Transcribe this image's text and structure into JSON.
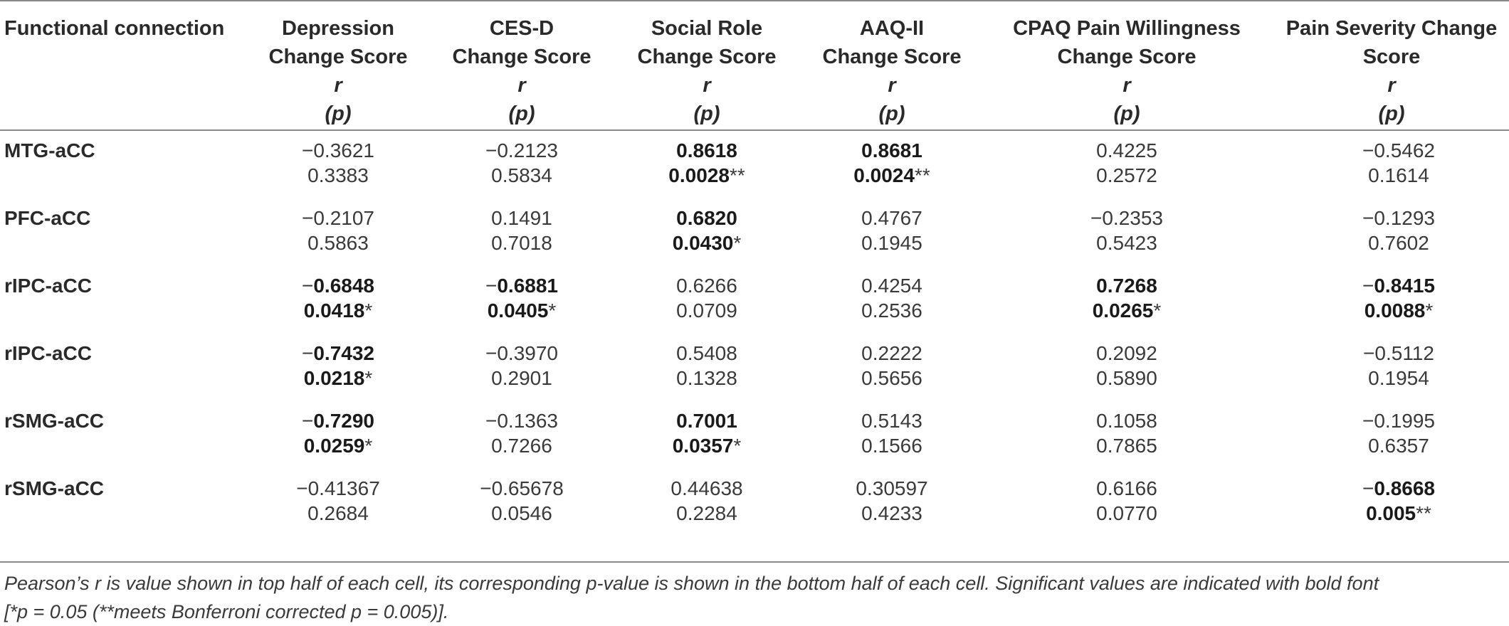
{
  "table": {
    "header": {
      "col0": "Functional connection",
      "cols": [
        {
          "l1": "Depression",
          "l2": "Change Score",
          "r": "r",
          "p": "(p)"
        },
        {
          "l1": "CES-D",
          "l2": "Change Score",
          "r": "r",
          "p": "(p)"
        },
        {
          "l1": "Social Role",
          "l2": "Change Score",
          "r": "r",
          "p": "(p)"
        },
        {
          "l1": "AAQ-II",
          "l2": "Change Score",
          "r": "r",
          "p": "(p)"
        },
        {
          "l1": "CPAQ Pain Willingness",
          "l2": "Change Score",
          "r": "r",
          "p": "(p)"
        },
        {
          "l1": "Pain Severity Change",
          "l2": "Score",
          "r": "r",
          "p": "(p)"
        }
      ]
    },
    "rows": [
      {
        "label": "MTG-aCC",
        "r": [
          {
            "sign": "−",
            "num": "0.3621",
            "bold": false
          },
          {
            "sign": "−",
            "num": "0.2123",
            "bold": false
          },
          {
            "sign": "",
            "num": "0.8618",
            "bold": true
          },
          {
            "sign": "",
            "num": "0.8681",
            "bold": true
          },
          {
            "sign": "",
            "num": "0.4225",
            "bold": false
          },
          {
            "sign": "−",
            "num": "0.5462",
            "bold": false
          }
        ],
        "p": [
          {
            "num": "0.3383",
            "bold": false,
            "star": ""
          },
          {
            "num": "0.5834",
            "bold": false,
            "star": ""
          },
          {
            "num": "0.0028",
            "bold": true,
            "star": "**"
          },
          {
            "num": "0.0024",
            "bold": true,
            "star": "**"
          },
          {
            "num": "0.2572",
            "bold": false,
            "star": ""
          },
          {
            "num": "0.1614",
            "bold": false,
            "star": ""
          }
        ]
      },
      {
        "label": "PFC-aCC",
        "r": [
          {
            "sign": "−",
            "num": "0.2107",
            "bold": false
          },
          {
            "sign": "",
            "num": "0.1491",
            "bold": false
          },
          {
            "sign": "",
            "num": "0.6820",
            "bold": true
          },
          {
            "sign": "",
            "num": "0.4767",
            "bold": false
          },
          {
            "sign": "−",
            "num": "0.2353",
            "bold": false
          },
          {
            "sign": "−",
            "num": "0.1293",
            "bold": false
          }
        ],
        "p": [
          {
            "num": "0.5863",
            "bold": false,
            "star": ""
          },
          {
            "num": "0.7018",
            "bold": false,
            "star": ""
          },
          {
            "num": "0.0430",
            "bold": true,
            "star": "*"
          },
          {
            "num": "0.1945",
            "bold": false,
            "star": ""
          },
          {
            "num": "0.5423",
            "bold": false,
            "star": ""
          },
          {
            "num": "0.7602",
            "bold": false,
            "star": ""
          }
        ]
      },
      {
        "label": "rIPC-aCC",
        "r": [
          {
            "sign": "−",
            "num": "0.6848",
            "bold": true
          },
          {
            "sign": "−",
            "num": "0.6881",
            "bold": true
          },
          {
            "sign": "",
            "num": "0.6266",
            "bold": false
          },
          {
            "sign": "",
            "num": "0.4254",
            "bold": false
          },
          {
            "sign": "",
            "num": "0.7268",
            "bold": true
          },
          {
            "sign": "−",
            "num": "0.8415",
            "bold": true
          }
        ],
        "p": [
          {
            "num": "0.0418",
            "bold": true,
            "star": "*"
          },
          {
            "num": "0.0405",
            "bold": true,
            "star": "*"
          },
          {
            "num": "0.0709",
            "bold": false,
            "star": ""
          },
          {
            "num": "0.2536",
            "bold": false,
            "star": ""
          },
          {
            "num": "0.0265",
            "bold": true,
            "star": "*"
          },
          {
            "num": "0.0088",
            "bold": true,
            "star": "*"
          }
        ]
      },
      {
        "label": "rIPC-aCC",
        "r": [
          {
            "sign": "−",
            "num": "0.7432",
            "bold": true
          },
          {
            "sign": "−",
            "num": "0.3970",
            "bold": false
          },
          {
            "sign": "",
            "num": "0.5408",
            "bold": false
          },
          {
            "sign": "",
            "num": "0.2222",
            "bold": false
          },
          {
            "sign": "",
            "num": "0.2092",
            "bold": false
          },
          {
            "sign": "−",
            "num": "0.5112",
            "bold": false
          }
        ],
        "p": [
          {
            "num": "0.0218",
            "bold": true,
            "star": "*"
          },
          {
            "num": "0.2901",
            "bold": false,
            "star": ""
          },
          {
            "num": "0.1328",
            "bold": false,
            "star": ""
          },
          {
            "num": "0.5656",
            "bold": false,
            "star": ""
          },
          {
            "num": "0.5890",
            "bold": false,
            "star": ""
          },
          {
            "num": "0.1954",
            "bold": false,
            "star": ""
          }
        ]
      },
      {
        "label": "rSMG-aCC",
        "r": [
          {
            "sign": "−",
            "num": "0.7290",
            "bold": true
          },
          {
            "sign": "−",
            "num": "0.1363",
            "bold": false
          },
          {
            "sign": "",
            "num": "0.7001",
            "bold": true
          },
          {
            "sign": "",
            "num": "0.5143",
            "bold": false
          },
          {
            "sign": "",
            "num": "0.1058",
            "bold": false
          },
          {
            "sign": "−",
            "num": "0.1995",
            "bold": false
          }
        ],
        "p": [
          {
            "num": "0.0259",
            "bold": true,
            "star": "*"
          },
          {
            "num": "0.7266",
            "bold": false,
            "star": ""
          },
          {
            "num": "0.0357",
            "bold": true,
            "star": "*"
          },
          {
            "num": "0.1566",
            "bold": false,
            "star": ""
          },
          {
            "num": "0.7865",
            "bold": false,
            "star": ""
          },
          {
            "num": "0.6357",
            "bold": false,
            "star": ""
          }
        ]
      },
      {
        "label": "rSMG-aCC",
        "r": [
          {
            "sign": "−",
            "num": "0.41367",
            "bold": false
          },
          {
            "sign": "−",
            "num": "0.65678",
            "bold": false
          },
          {
            "sign": "",
            "num": "0.44638",
            "bold": false
          },
          {
            "sign": "",
            "num": "0.30597",
            "bold": false
          },
          {
            "sign": "",
            "num": "0.6166",
            "bold": false
          },
          {
            "sign": "−",
            "num": "0.8668",
            "bold": true
          }
        ],
        "p": [
          {
            "num": "0.2684",
            "bold": false,
            "star": ""
          },
          {
            "num": "0.0546",
            "bold": false,
            "star": ""
          },
          {
            "num": "0.2284",
            "bold": false,
            "star": ""
          },
          {
            "num": "0.4233",
            "bold": false,
            "star": ""
          },
          {
            "num": "0.0770",
            "bold": false,
            "star": ""
          },
          {
            "num": "0.005",
            "bold": true,
            "star": "**"
          }
        ]
      }
    ]
  },
  "footnote": {
    "line1": "Pearson’s r is value shown in top half of each cell, its corresponding p-value is shown in the bottom half of each cell. Significant values are indicated with bold font",
    "line2": "[*p = 0.05 (**meets Bonferroni corrected p = 0.005)]."
  }
}
